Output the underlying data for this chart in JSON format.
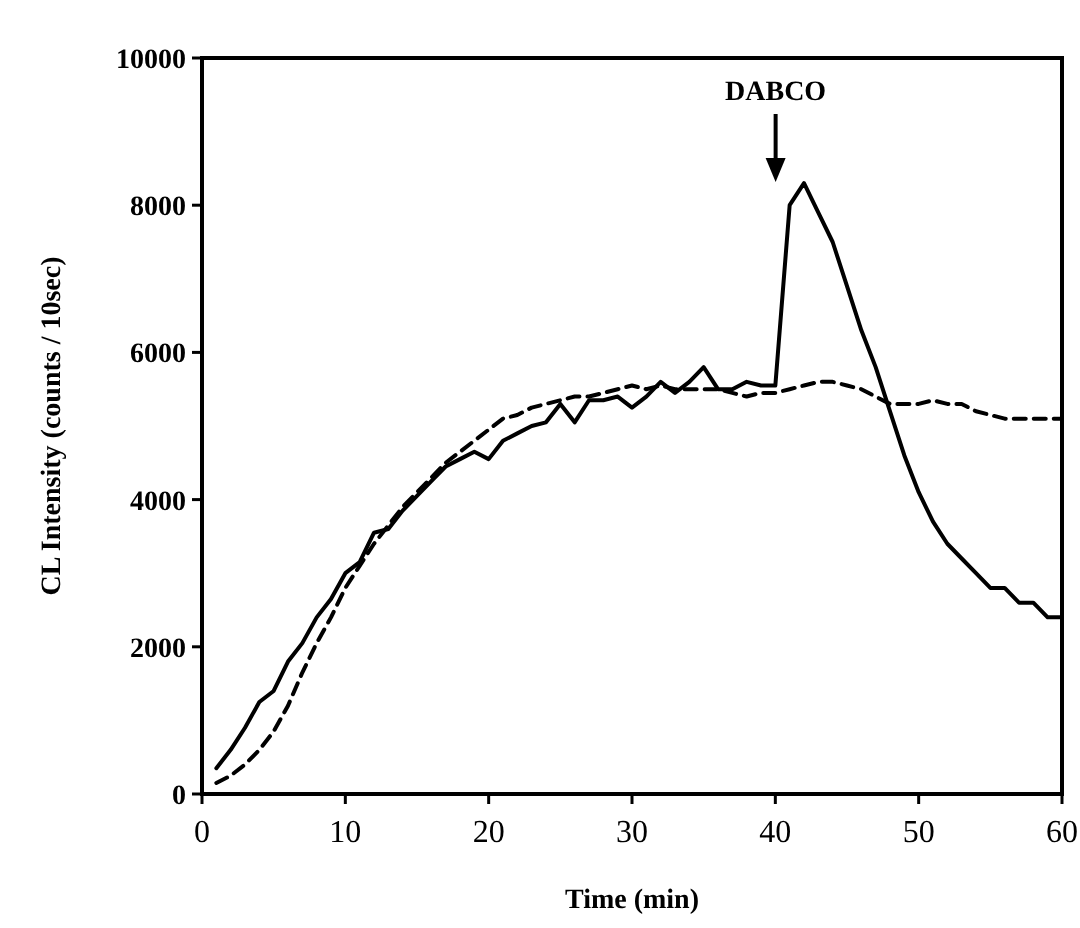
{
  "chart_data": {
    "type": "line",
    "xlabel": "Time (min)",
    "ylabel": "CL Intensity (counts / 10sec)",
    "xlim": [
      0,
      60
    ],
    "xticks": [
      0,
      10,
      20,
      30,
      40,
      50,
      60
    ],
    "ylim": [
      0,
      10000
    ],
    "yticks": [
      0,
      2000,
      4000,
      6000,
      8000,
      10000
    ],
    "grid": false,
    "marker": "none",
    "x": [
      1,
      2,
      3,
      4,
      5,
      6,
      7,
      8,
      9,
      10,
      11,
      12,
      13,
      14,
      15,
      16,
      17,
      18,
      19,
      20,
      21,
      22,
      23,
      24,
      25,
      26,
      27,
      28,
      29,
      30,
      31,
      32,
      33,
      34,
      35,
      36,
      37,
      38,
      39,
      40,
      41,
      42,
      43,
      44,
      45,
      46,
      47,
      48,
      49,
      50,
      51,
      52,
      53,
      54,
      55,
      56,
      57,
      58,
      59,
      60
    ],
    "series": [
      {
        "color": "#000000",
        "line_style": "solid",
        "values": [
          350,
          600,
          900,
          1250,
          1400,
          1800,
          2050,
          2400,
          2650,
          3000,
          3150,
          3550,
          3600,
          3850,
          4050,
          4250,
          4450,
          4550,
          4650,
          4550,
          4800,
          4900,
          5000,
          5050,
          5300,
          5050,
          5350,
          5350,
          5400,
          5250,
          5400,
          5600,
          5450,
          5600,
          5800,
          5500,
          5500,
          5600,
          5550,
          5550,
          8000,
          8300,
          7900,
          7500,
          6900,
          6300,
          5800,
          5200,
          4600,
          4100,
          3700,
          3400,
          3200,
          3000,
          2800,
          2800,
          2600,
          2600,
          2400,
          2400
        ]
      },
      {
        "color": "#000000",
        "line_style": "dashed",
        "values": [
          150,
          250,
          400,
          600,
          850,
          1200,
          1650,
          2050,
          2400,
          2800,
          3100,
          3400,
          3650,
          3900,
          4100,
          4300,
          4500,
          4650,
          4800,
          4950,
          5100,
          5150,
          5250,
          5300,
          5350,
          5400,
          5400,
          5450,
          5500,
          5550,
          5500,
          5550,
          5500,
          5500,
          5500,
          5500,
          5450,
          5400,
          5450,
          5450,
          5500,
          5550,
          5600,
          5600,
          5550,
          5500,
          5400,
          5300,
          5300,
          5300,
          5350,
          5300,
          5300,
          5200,
          5150,
          5100,
          5100,
          5100,
          5100,
          5100
        ]
      }
    ],
    "annotations": [
      "DABCO"
    ]
  }
}
